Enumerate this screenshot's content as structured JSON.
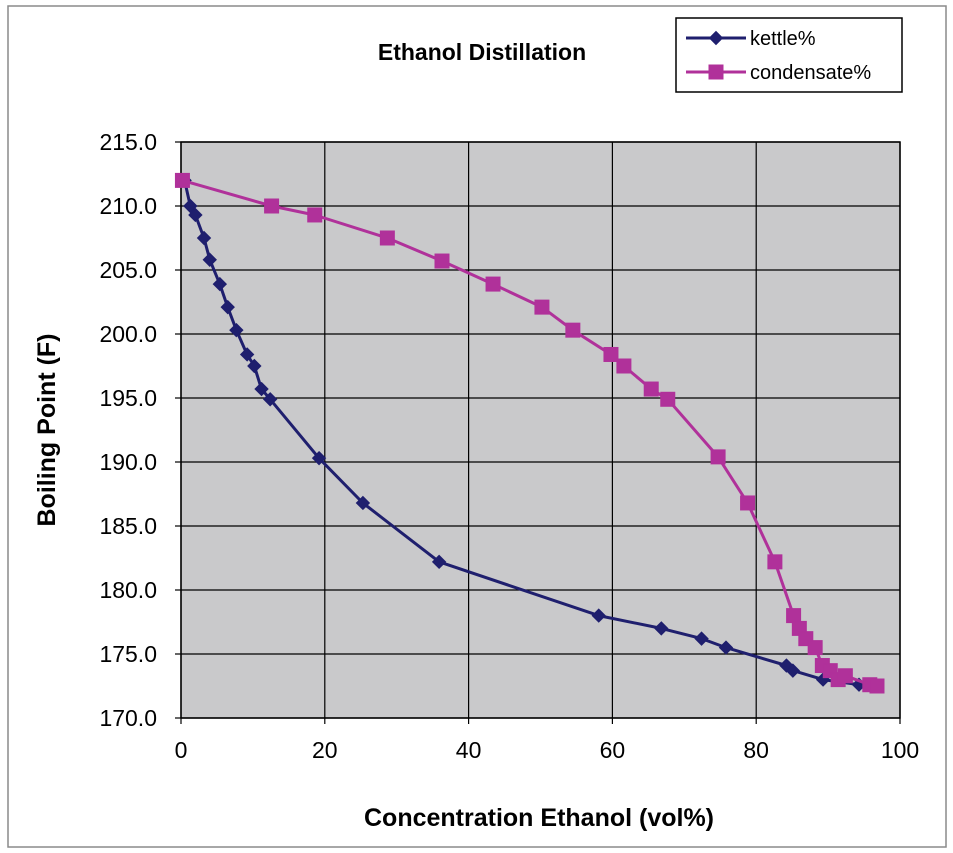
{
  "chart_data": {
    "type": "line",
    "title": "Ethanol Distillation",
    "xlabel": "Concentration Ethanol (vol%)",
    "ylabel": "Boiling Point (F)",
    "xlim": [
      0,
      100
    ],
    "ylim": [
      170.0,
      215.0
    ],
    "x_ticks": [
      "0",
      "20",
      "40",
      "60",
      "80",
      "100"
    ],
    "y_ticks": [
      "170.0",
      "175.0",
      "180.0",
      "185.0",
      "190.0",
      "195.0",
      "200.0",
      "205.0",
      "210.0",
      "215.0"
    ],
    "grid": true,
    "legend_position": "top-right",
    "series": [
      {
        "name": "kettle%",
        "color": "#1f1f6e",
        "marker": "diamond",
        "points": [
          [
            0.5,
            212.0
          ],
          [
            1.3,
            210.0
          ],
          [
            2.0,
            209.3
          ],
          [
            3.2,
            207.5
          ],
          [
            4.0,
            205.8
          ],
          [
            5.4,
            203.9
          ],
          [
            6.5,
            202.1
          ],
          [
            7.7,
            200.3
          ],
          [
            9.2,
            198.4
          ],
          [
            10.2,
            197.5
          ],
          [
            11.2,
            195.7
          ],
          [
            12.4,
            194.9
          ],
          [
            19.2,
            190.3
          ],
          [
            25.3,
            186.8
          ],
          [
            35.9,
            182.2
          ],
          [
            58.1,
            178.0
          ],
          [
            66.8,
            177.0
          ],
          [
            72.4,
            176.2
          ],
          [
            75.8,
            175.5
          ],
          [
            84.2,
            174.1
          ],
          [
            85.1,
            173.7
          ],
          [
            89.3,
            173.0
          ],
          [
            94.3,
            172.6
          ],
          [
            96.1,
            172.5
          ]
        ]
      },
      {
        "name": "condensate%",
        "color": "#b0319a",
        "marker": "square",
        "points": [
          [
            0.2,
            212.0
          ],
          [
            12.6,
            210.0
          ],
          [
            18.6,
            209.3
          ],
          [
            28.7,
            207.5
          ],
          [
            36.3,
            205.7
          ],
          [
            43.4,
            203.9
          ],
          [
            50.2,
            202.1
          ],
          [
            54.5,
            200.3
          ],
          [
            59.8,
            198.4
          ],
          [
            61.6,
            197.5
          ],
          [
            65.4,
            195.7
          ],
          [
            67.7,
            194.9
          ],
          [
            74.7,
            190.4
          ],
          [
            78.8,
            186.8
          ],
          [
            82.6,
            182.2
          ],
          [
            85.2,
            178.0
          ],
          [
            86.0,
            177.0
          ],
          [
            86.9,
            176.2
          ],
          [
            88.2,
            175.5
          ],
          [
            89.2,
            174.1
          ],
          [
            90.3,
            173.7
          ],
          [
            91.4,
            173.0
          ],
          [
            92.4,
            173.3
          ],
          [
            95.8,
            172.6
          ],
          [
            96.8,
            172.5
          ]
        ]
      }
    ]
  }
}
